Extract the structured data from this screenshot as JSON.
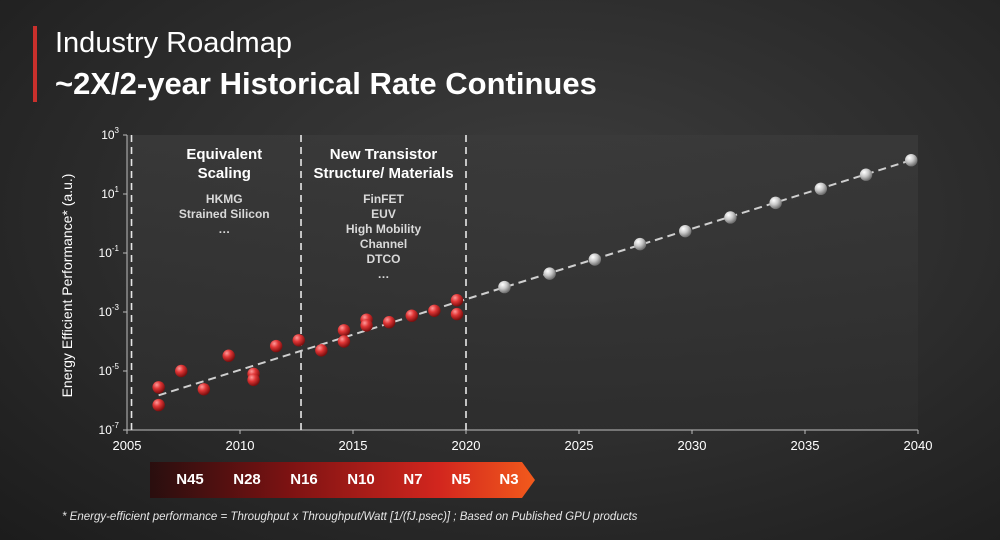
{
  "header": {
    "title": "Industry Roadmap",
    "subtitle": "~2X/2-year Historical Rate Continues"
  },
  "colors": {
    "accent": "#c9302c",
    "historical_point": "#e03535",
    "projected_point": "#cfcfcf",
    "trend_line": "#cfcfcf",
    "arrow_start": "#2a0c0c",
    "arrow_end": "#f25a1c"
  },
  "chart_data": {
    "type": "scatter",
    "ylabel": "Energy Efficient Performance* (a.u.)",
    "xlabel": "",
    "xlim": [
      2005,
      2040
    ],
    "ylim_log10": [
      -7,
      3
    ],
    "yscale": "log",
    "x_ticks": [
      "2005",
      "2010",
      "2015",
      "2020",
      "2025",
      "2030",
      "2035",
      "2040"
    ],
    "y_ticks": [
      {
        "base": "10",
        "exp": "3",
        "log10": 3
      },
      {
        "base": "10",
        "exp": "1",
        "log10": 1
      },
      {
        "base": "10",
        "exp": "-1",
        "log10": -1
      },
      {
        "base": "10",
        "exp": "-3",
        "log10": -3
      },
      {
        "base": "10",
        "exp": "-5",
        "log10": -5
      },
      {
        "base": "10",
        "exp": "-7",
        "log10": -7
      }
    ],
    "regions": [
      {
        "title_lines": [
          "Equivalent",
          "Scaling"
        ],
        "items": [
          "HKMG",
          "Strained Silicon",
          "…"
        ]
      },
      {
        "title_lines": [
          "New Transistor",
          "Structure/ Materials"
        ],
        "items": [
          "FinFET",
          "EUV",
          "High Mobility",
          "Channel",
          "DTCO",
          "…"
        ]
      }
    ],
    "dividers_x": [
      2005.2,
      2012.7,
      2020.0
    ],
    "series": [
      {
        "type": "historical",
        "points": [
          {
            "x": 2006.4,
            "y": 2.8e-06
          },
          {
            "x": 2006.4,
            "y": 7e-07
          },
          {
            "x": 2007.4,
            "y": 1e-05
          },
          {
            "x": 2008.4,
            "y": 2.4e-06
          },
          {
            "x": 2009.5,
            "y": 3.3e-05
          },
          {
            "x": 2010.6,
            "y": 8e-06
          },
          {
            "x": 2010.6,
            "y": 5e-06
          },
          {
            "x": 2011.6,
            "y": 7e-05
          },
          {
            "x": 2012.6,
            "y": 0.00011
          },
          {
            "x": 2013.6,
            "y": 5e-05
          },
          {
            "x": 2014.6,
            "y": 0.00024
          },
          {
            "x": 2014.6,
            "y": 0.0001
          },
          {
            "x": 2015.6,
            "y": 0.00055
          },
          {
            "x": 2015.6,
            "y": 0.00035
          },
          {
            "x": 2016.6,
            "y": 0.00045
          },
          {
            "x": 2017.6,
            "y": 0.00075
          },
          {
            "x": 2018.6,
            "y": 0.0011
          },
          {
            "x": 2019.6,
            "y": 0.0025
          },
          {
            "x": 2019.6,
            "y": 0.00085
          }
        ]
      },
      {
        "type": "projected",
        "points": [
          {
            "x": 2021.7,
            "y": 0.007
          },
          {
            "x": 2023.7,
            "y": 0.02
          },
          {
            "x": 2025.7,
            "y": 0.06
          },
          {
            "x": 2027.7,
            "y": 0.2
          },
          {
            "x": 2029.7,
            "y": 0.55
          },
          {
            "x": 2031.7,
            "y": 1.6
          },
          {
            "x": 2033.7,
            "y": 5.0
          },
          {
            "x": 2035.7,
            "y": 15
          },
          {
            "x": 2037.7,
            "y": 45
          },
          {
            "x": 2039.7,
            "y": 140
          }
        ]
      }
    ],
    "trend_line": {
      "from": {
        "x": 2006.4,
        "y": 1.5e-06
      },
      "to": {
        "x": 2039.7,
        "y": 140
      }
    }
  },
  "nodes": {
    "labels": [
      "N45",
      "N28",
      "N16",
      "N10",
      "N7",
      "N5",
      "N3"
    ]
  },
  "footnote": "* Energy-efficient performance = Throughput x Throughput/Watt [1/(fJ.psec)] ; Based on Published GPU products"
}
